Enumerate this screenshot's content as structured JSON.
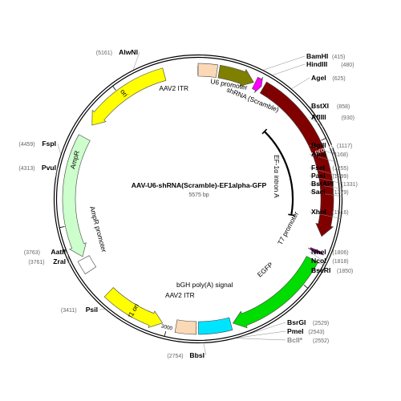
{
  "plasmid": {
    "name": "AAV-U6-shRNA(Scramble)-EF1alpha-GFP",
    "length_label": "5575 bp",
    "length": 5575
  },
  "features": [
    {
      "id": "aav2-itr-left",
      "label": "AAV2 ITR",
      "start": 5575,
      "end": 130,
      "dir": "none",
      "color": "#fcd9b6",
      "label_pos": "inside"
    },
    {
      "id": "u6-promoter",
      "label": "U6 promoter",
      "start": 145,
      "end": 395,
      "dir": "forward",
      "color": "#808000",
      "label_pos": "inside"
    },
    {
      "id": "shrna-scramble",
      "label": "shRNA (Scramble)",
      "start": 405,
      "end": 455,
      "dir": "forward",
      "color": "#ff00ff",
      "label_pos": "inside"
    },
    {
      "id": "ef1a-promoter",
      "label": "EF-1α promoter",
      "start": 470,
      "end": 1655,
      "dir": "forward",
      "color": "#800000",
      "label_pos": "on"
    },
    {
      "id": "ef1a-intron",
      "label": "EF-1α intron A",
      "start": 690,
      "end": 1545,
      "dir": "none",
      "color": "#000000",
      "label_pos": "inner"
    },
    {
      "id": "t7-promoter",
      "label": "T7 promoter",
      "start": 1755,
      "end": 1775,
      "dir": "forward",
      "color": "#800080",
      "label_pos": "inside"
    },
    {
      "id": "egfp",
      "label": "EGFP",
      "start": 1825,
      "end": 2545,
      "dir": "forward",
      "color": "#00dd00",
      "label_pos": "inside"
    },
    {
      "id": "bgh-polya",
      "label": "bGH poly(A) signal",
      "start": 2560,
      "end": 2785,
      "dir": "none",
      "color": "#00e5ff",
      "label_pos": "inside"
    },
    {
      "id": "aav2-itr-right",
      "label": "AAV2 ITR",
      "start": 2800,
      "end": 2940,
      "dir": "none",
      "color": "#fcd9b6",
      "label_pos": "inside"
    },
    {
      "id": "f1-ori",
      "label": "f1 ori",
      "start": 3035,
      "end": 3465,
      "dir": "reverse",
      "color": "#ffff00",
      "label_pos": "on"
    },
    {
      "id": "ampr-promoter",
      "label": "AmpR promoter",
      "start": 3660,
      "end": 3755,
      "dir": "none",
      "color": "#ffffff",
      "label_pos": "inside"
    },
    {
      "id": "ampr",
      "label": "AmpR",
      "start": 3770,
      "end": 4620,
      "dir": "reverse",
      "color": "#ccffcc",
      "label_pos": "inside"
    },
    {
      "id": "ori",
      "label": "ori",
      "start": 4720,
      "end": 5340,
      "dir": "reverse",
      "color": "#ffff00",
      "label_pos": "on"
    }
  ],
  "ticks": [
    {
      "pos": 1000,
      "label": "1000"
    },
    {
      "pos": 2000,
      "label": "2000"
    },
    {
      "pos": 3000,
      "label": "3000"
    },
    {
      "pos": 4000,
      "label": "4000"
    },
    {
      "pos": 5000,
      "label": "5000"
    }
  ],
  "enzymes": [
    {
      "name": "BamHI",
      "pos": "(415)",
      "side": "right",
      "muted": false
    },
    {
      "name": "HindIII",
      "pos": "(480)",
      "side": "right",
      "muted": false
    },
    {
      "name": "AgeI",
      "pos": "(625)",
      "side": "right",
      "muted": false
    },
    {
      "name": "BstXI",
      "pos": "(858)",
      "side": "right",
      "muted": false
    },
    {
      "name": "AflIII",
      "pos": "(930)",
      "side": "right",
      "muted": false
    },
    {
      "name": "BglII",
      "pos": "(1117)",
      "side": "right",
      "muted": false
    },
    {
      "name": "ApaI",
      "pos": "(1168)",
      "side": "right",
      "muted": false
    },
    {
      "name": "FseI",
      "pos": "(1255)",
      "side": "right",
      "muted": false
    },
    {
      "name": "PasI",
      "pos": "(1299)",
      "side": "right",
      "muted": false
    },
    {
      "name": "BstAPI",
      "pos": "(1331)",
      "side": "right",
      "muted": false
    },
    {
      "name": "SacI",
      "pos": "(1379)",
      "side": "right",
      "muted": false
    },
    {
      "name": "XhoI",
      "pos": "(1516)",
      "side": "right",
      "muted": false
    },
    {
      "name": "NheI",
      "pos": "(1806)",
      "side": "right",
      "muted": false
    },
    {
      "name": "NcoI",
      "pos": "(1818)",
      "side": "right",
      "muted": false
    },
    {
      "name": "BseRI",
      "pos": "(1850)",
      "side": "right",
      "muted": false
    },
    {
      "name": "BsrGI",
      "pos": "(2529)",
      "side": "right",
      "muted": false
    },
    {
      "name": "PmeI",
      "pos": "(2543)",
      "side": "right",
      "muted": false
    },
    {
      "name": "BclI*",
      "pos": "(2552)",
      "side": "right",
      "muted": true
    },
    {
      "name": "BbsI",
      "pos": "(2754)",
      "side": "left",
      "muted": false
    },
    {
      "name": "PsiI",
      "pos": "(3411)",
      "side": "left",
      "muted": false
    },
    {
      "name": "ZraI",
      "pos": "(3761)",
      "side": "left",
      "muted": false
    },
    {
      "name": "AatII",
      "pos": "(3763)",
      "side": "left",
      "muted": false
    },
    {
      "name": "PvuI",
      "pos": "(4313)",
      "side": "left",
      "muted": false
    },
    {
      "name": "FspI",
      "pos": "(4459)",
      "side": "left",
      "muted": false
    },
    {
      "name": "AlwNI",
      "pos": "(5161)",
      "side": "left",
      "muted": false
    }
  ]
}
